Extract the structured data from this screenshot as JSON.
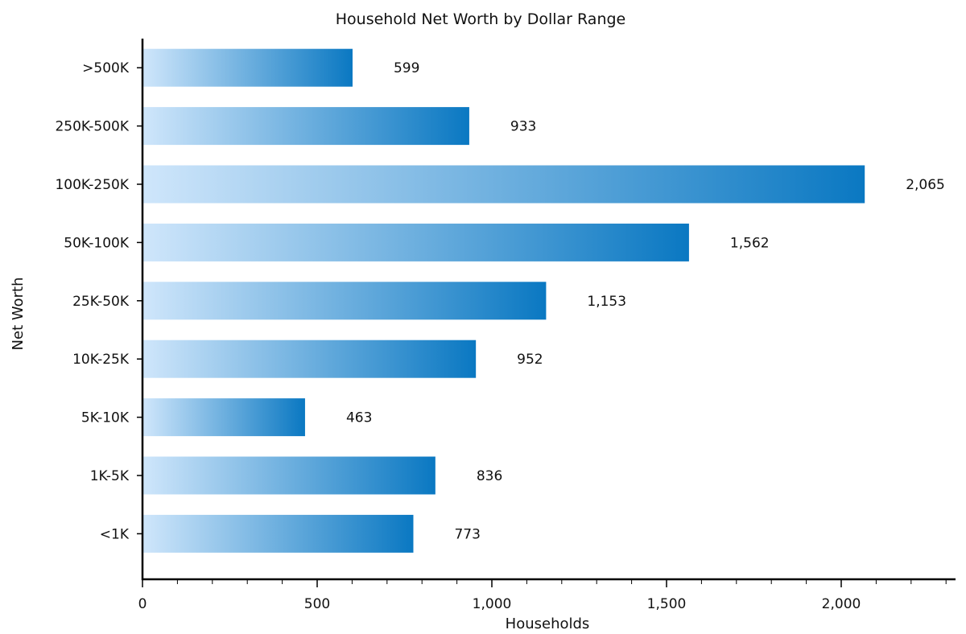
{
  "chart_data": {
    "type": "bar",
    "orientation": "horizontal",
    "title": "Household Net Worth by Dollar Range",
    "xlabel": "Households",
    "ylabel": "Net Worth",
    "categories": [
      ">500K",
      "250K-500K",
      "100K-250K",
      "50K-100K",
      "25K-50K",
      "10K-25K",
      "5K-10K",
      "1K-5K",
      "<1K"
    ],
    "values": [
      599,
      933,
      2065,
      1562,
      1153,
      952,
      463,
      836,
      773
    ],
    "value_labels": [
      "599",
      "933",
      "2,065",
      "1,562",
      "1,153",
      "952",
      "463",
      "836",
      "773"
    ],
    "xlim": [
      0,
      2330
    ],
    "x_ticks": [
      0,
      500,
      1000,
      1500,
      2000
    ],
    "x_tick_labels": [
      "0",
      "500",
      "1,000",
      "1,500",
      "2,000"
    ],
    "minor_tick_step": 100,
    "grid": false,
    "legend": "none",
    "colors": {
      "bar_start": "#cfe6fb",
      "bar_end": "#0a78c2",
      "axis": "#000000"
    }
  }
}
